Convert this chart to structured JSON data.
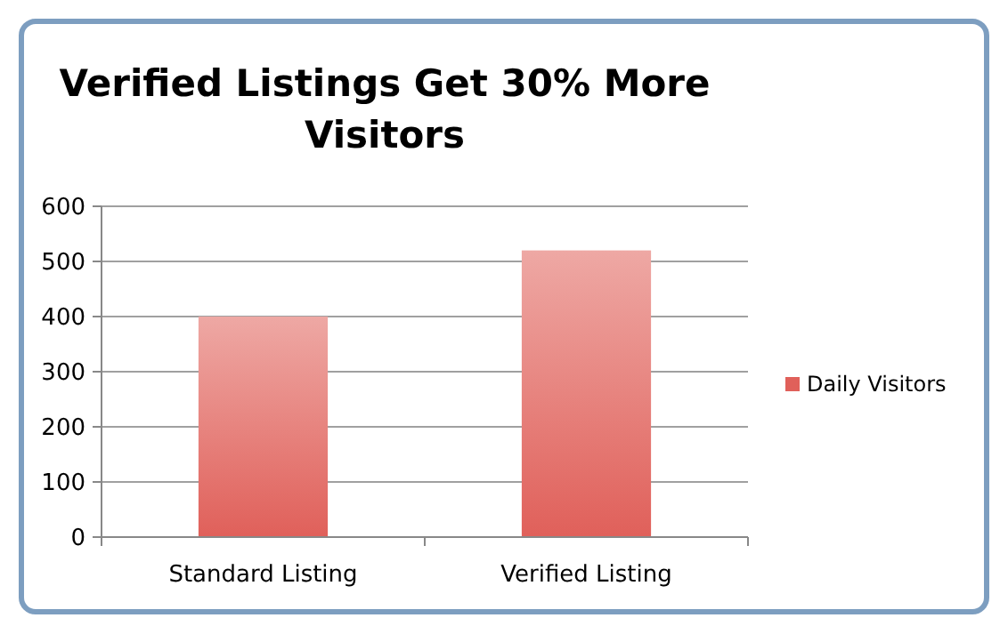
{
  "chart_data": {
    "type": "bar",
    "title": "Verified Listings Get 30% More Visitors",
    "categories": [
      "Standard Listing",
      "Verified Listing"
    ],
    "series": [
      {
        "name": "Daily Visitors",
        "color": "#e0605a",
        "values": [
          400,
          520
        ]
      }
    ],
    "ylim": [
      0,
      600
    ],
    "yticks": [
      0,
      100,
      200,
      300,
      400,
      500,
      600
    ],
    "grid": "y",
    "legend": "right"
  }
}
